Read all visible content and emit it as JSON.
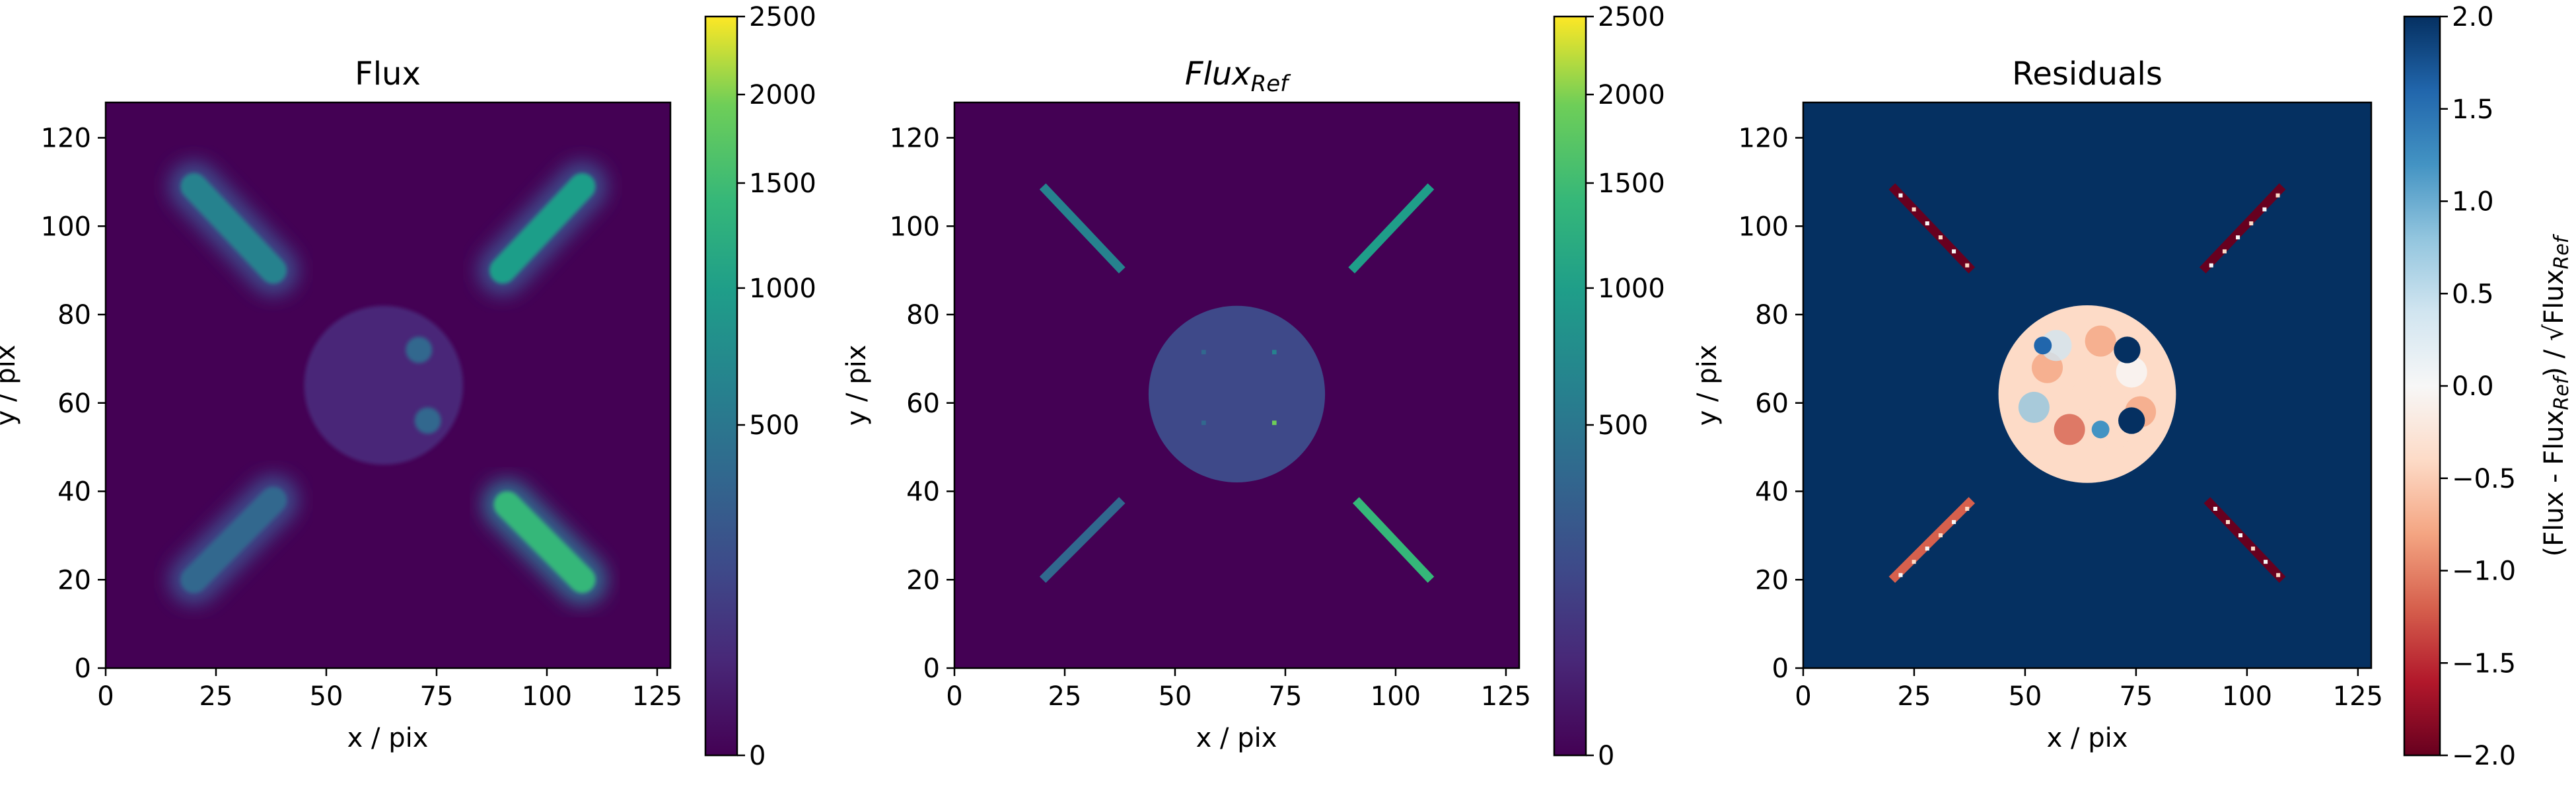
{
  "chart_data": [
    {
      "type": "heatmap",
      "title": "Flux",
      "xlabel": "x / pix",
      "ylabel": "y / pix",
      "xlim": [
        0,
        128
      ],
      "ylim": [
        0,
        128
      ],
      "xticks": [
        "0",
        "25",
        "50",
        "75",
        "100",
        "125"
      ],
      "yticks": [
        "0",
        "20",
        "40",
        "60",
        "80",
        "100",
        "120"
      ],
      "colormap": "viridis",
      "colorbar": {
        "scale": "sqrt",
        "range": [
          0,
          2500
        ],
        "ticks": [
          "0",
          "500",
          "1000",
          "1500",
          "2000",
          "2500"
        ]
      },
      "features": [
        {
          "shape": "line",
          "from": [
            20,
            109
          ],
          "to": [
            38,
            90
          ],
          "flux": 600
        },
        {
          "shape": "line",
          "from": [
            90,
            90
          ],
          "to": [
            108,
            109
          ],
          "flux": 700
        },
        {
          "shape": "line",
          "from": [
            20,
            20
          ],
          "to": [
            38,
            38
          ],
          "flux": 300
        },
        {
          "shape": "line",
          "from": [
            91,
            37
          ],
          "to": [
            108,
            20
          ],
          "flux": 1100
        },
        {
          "shape": "disk",
          "center": [
            63,
            64
          ],
          "radius": 18,
          "flux": 60
        },
        {
          "shape": "blob",
          "center": [
            73,
            56
          ],
          "radius": 3,
          "flux": 300
        },
        {
          "shape": "blob",
          "center": [
            71,
            72
          ],
          "radius": 3,
          "flux": 200
        }
      ]
    },
    {
      "type": "heatmap",
      "title_main": "Flux",
      "title_sub": "Ref",
      "xlabel": "x / pix",
      "ylabel": "y / pix",
      "xlim": [
        0,
        128
      ],
      "ylim": [
        0,
        128
      ],
      "xticks": [
        "0",
        "25",
        "50",
        "75",
        "100",
        "125"
      ],
      "yticks": [
        "0",
        "20",
        "40",
        "60",
        "80",
        "100",
        "120"
      ],
      "colormap": "viridis",
      "colorbar": {
        "scale": "sqrt",
        "range": [
          0,
          2500
        ],
        "ticks": [
          "0",
          "500",
          "1000",
          "1500",
          "2000",
          "2500"
        ]
      },
      "features": [
        {
          "shape": "line",
          "from": [
            20,
            109
          ],
          "to": [
            38,
            90
          ],
          "flux": 500
        },
        {
          "shape": "line",
          "from": [
            90,
            90
          ],
          "to": [
            108,
            109
          ],
          "flux": 650
        },
        {
          "shape": "line",
          "from": [
            20,
            20
          ],
          "to": [
            38,
            38
          ],
          "flux": 300
        },
        {
          "shape": "line",
          "from": [
            91,
            38
          ],
          "to": [
            108,
            20
          ],
          "flux": 1100
        },
        {
          "shape": "disk",
          "center": [
            64,
            62
          ],
          "radius": 20,
          "flux": 80
        },
        {
          "shape": "point",
          "center": [
            56,
            72
          ],
          "flux": 300
        },
        {
          "shape": "point",
          "center": [
            72,
            72
          ],
          "flux": 600
        },
        {
          "shape": "point",
          "center": [
            56,
            56
          ],
          "flux": 200
        },
        {
          "shape": "point",
          "center": [
            72,
            56
          ],
          "flux": 1500
        }
      ]
    },
    {
      "type": "heatmap",
      "title": "Residuals",
      "xlabel": "x / pix",
      "ylabel": "y / pix",
      "xlim": [
        0,
        128
      ],
      "ylim": [
        0,
        128
      ],
      "xticks": [
        "0",
        "25",
        "50",
        "75",
        "100",
        "125"
      ],
      "yticks": [
        "0",
        "20",
        "40",
        "60",
        "80",
        "100",
        "120"
      ],
      "colormap": "RdBu",
      "background_value": 2.0,
      "colorbar": {
        "range": [
          -2.0,
          2.0
        ],
        "ticks": [
          "−2.0",
          "−1.5",
          "−1.0",
          "−0.5",
          "0.0",
          "0.5",
          "1.0",
          "1.5",
          "2.0"
        ],
        "label_prefix": "(Flux - Flux",
        "label_sub1": "Ref",
        "label_mid": ") / √Flux",
        "label_sub2": "Ref"
      },
      "features": [
        {
          "shape": "line",
          "from": [
            20,
            109
          ],
          "to": [
            38,
            90
          ],
          "value": -1.8
        },
        {
          "shape": "line",
          "from": [
            90,
            90
          ],
          "to": [
            108,
            109
          ],
          "value": -2.0
        },
        {
          "shape": "line",
          "from": [
            20,
            20
          ],
          "to": [
            38,
            38
          ],
          "value": -1.2
        },
        {
          "shape": "line",
          "from": [
            91,
            38
          ],
          "to": [
            108,
            20
          ],
          "value": -2.0
        },
        {
          "shape": "disk",
          "center": [
            64,
            62
          ],
          "radius": 20,
          "value": -0.3
        },
        {
          "shape": "blob",
          "center": [
            73,
            72
          ],
          "radius": 3,
          "value": 2.0
        },
        {
          "shape": "blob",
          "center": [
            74,
            56
          ],
          "radius": 3,
          "value": 2.0
        },
        {
          "shape": "blob",
          "center": [
            54,
            73
          ],
          "radius": 2,
          "value": 1.6
        },
        {
          "shape": "blob",
          "center": [
            67,
            54
          ],
          "radius": 2,
          "value": 1.3
        }
      ]
    }
  ]
}
